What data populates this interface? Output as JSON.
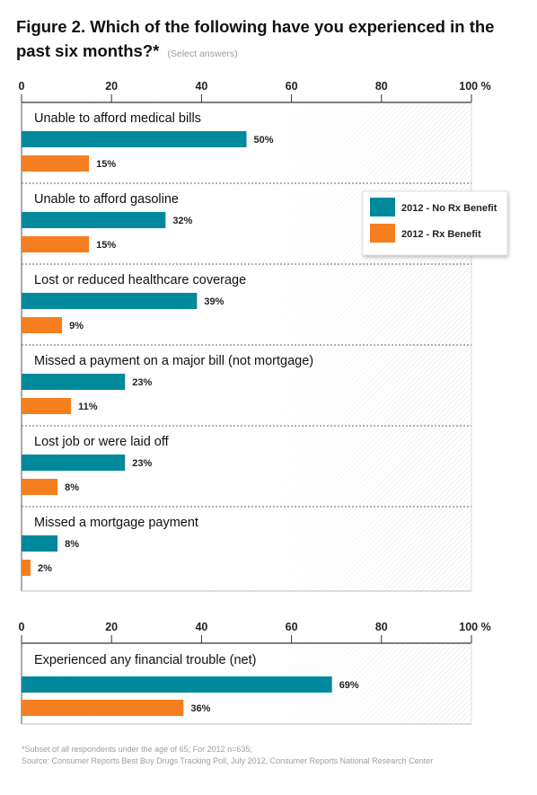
{
  "title": {
    "main": "Figure 2. Which of the following have you experienced in the past six months?*",
    "note": "(Select answers)"
  },
  "colors": {
    "teal": "#00899a",
    "orange": "#f57f1f",
    "axis": "#333333"
  },
  "chart_data": [
    {
      "type": "bar",
      "orientation": "horizontal",
      "xlim": [
        0,
        100
      ],
      "ticks": [
        "0",
        "20",
        "40",
        "60",
        "80",
        "100 %"
      ],
      "categories": [
        "Unable to afford medical bills",
        "Unable to afford gasoline",
        "Lost or reduced healthcare coverage",
        "Missed a payment on a major bill (not mortgage)",
        "Lost job or were laid off",
        "Missed a mortgage payment"
      ],
      "series": [
        {
          "name": "2012 - No Rx Benefit",
          "color": "#00899a",
          "values": [
            50,
            32,
            39,
            23,
            23,
            8
          ],
          "labels": [
            "50%",
            "32%",
            "39%",
            "23%",
            "23%",
            "8%"
          ]
        },
        {
          "name": "2012 - Rx Benefit",
          "color": "#f57f1f",
          "values": [
            15,
            15,
            9,
            11,
            8,
            2
          ],
          "labels": [
            "15%",
            "15%",
            "9%",
            "11%",
            "8%",
            "2%"
          ]
        }
      ],
      "legend": "top-right",
      "grid": false
    },
    {
      "type": "bar",
      "orientation": "horizontal",
      "xlim": [
        0,
        100
      ],
      "ticks": [
        "0",
        "20",
        "40",
        "60",
        "80",
        "100 %"
      ],
      "categories": [
        "Experienced any financial trouble (net)"
      ],
      "series": [
        {
          "name": "2012 - No Rx Benefit",
          "color": "#00899a",
          "values": [
            69
          ],
          "labels": [
            "69%"
          ]
        },
        {
          "name": "2012 - Rx Benefit",
          "color": "#f57f1f",
          "values": [
            36
          ],
          "labels": [
            "36%"
          ]
        }
      ],
      "grid": false
    }
  ],
  "footer": {
    "line1": "*Subset of all respondents under the age of 65; For 2012 n=635;",
    "line2": "Source: Consumer Reports Best Buy Drugs Tracking Poll, July 2012, Consumer Reports National Research Center"
  }
}
